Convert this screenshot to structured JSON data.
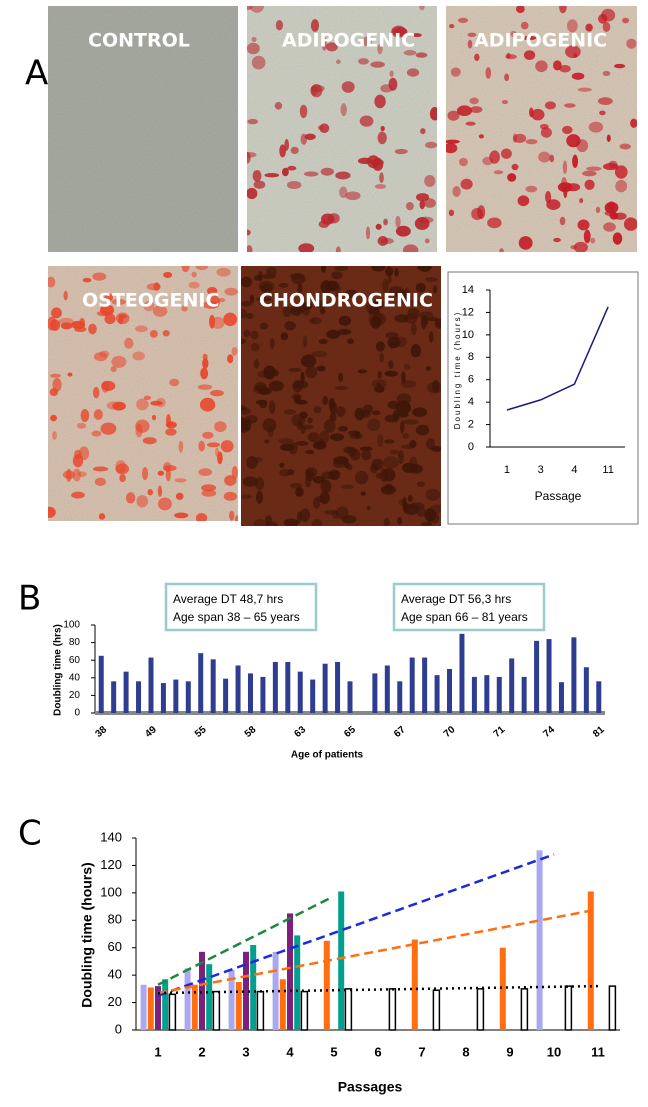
{
  "panel_labels": [
    "A",
    "B",
    "C"
  ],
  "image_labels": [
    "CONTROL",
    "ADIPOGENIC",
    "ADIPOGENIC",
    "OSTEOGENIC",
    "CHONDROGENIC"
  ],
  "chart_data": [
    {
      "type": "line",
      "ylabel": "Doubling time (hours)",
      "xlabel": "Passage",
      "categories": [
        "1",
        "3",
        "4",
        "11"
      ],
      "values": [
        3.3,
        4.2,
        5.6,
        12.5
      ],
      "color": "#1a1a7a",
      "ylim": [
        0,
        14
      ],
      "yticks": [
        0,
        2,
        4,
        6,
        8,
        10,
        12,
        14
      ],
      "grid": false
    },
    {
      "type": "bar",
      "ylabel": "Doubling time (hrs)",
      "xlabel": "Age of patients",
      "annotations": [
        "Average DT 48,7 hrs",
        "Age span 38   – 65 years",
        "Average DT 56,3 hrs",
        "Age span 66   – 81 years"
      ],
      "categories": [
        "38",
        null,
        null,
        null,
        "49",
        null,
        null,
        null,
        "55",
        null,
        null,
        null,
        "58",
        null,
        null,
        null,
        "63",
        null,
        null,
        null,
        "65",
        null,
        null,
        null,
        "67",
        null,
        null,
        null,
        "70",
        null,
        null,
        null,
        "71",
        null,
        null,
        null,
        "74",
        null,
        null,
        null,
        "81"
      ],
      "values": [
        65,
        36,
        47,
        36,
        63,
        34,
        38,
        36,
        68,
        61,
        39,
        54,
        45,
        41,
        58,
        58,
        47,
        38,
        56,
        58,
        36,
        null,
        45,
        54,
        36,
        63,
        63,
        43,
        50,
        90,
        41,
        43,
        41,
        62,
        41,
        82,
        84,
        35,
        86,
        52,
        36
      ],
      "color": "#2e3d8f",
      "ylim": [
        0,
        100
      ],
      "yticks": [
        0,
        20,
        40,
        60,
        80,
        100
      ],
      "grid": false
    },
    {
      "type": "bar",
      "ylabel": "Doubling time (hours)",
      "xlabel": "Passages",
      "categories": [
        "1",
        "2",
        "3",
        "4",
        "5",
        "6",
        "7",
        "8",
        "9",
        "10",
        "11"
      ],
      "series": [
        {
          "color": "#a9a9f0",
          "values": [
            33,
            45,
            44,
            57,
            null,
            null,
            null,
            null,
            null,
            131,
            null
          ]
        },
        {
          "color": "#ff6f12",
          "values": [
            31,
            33,
            35,
            37,
            65,
            null,
            66,
            null,
            60,
            null,
            101
          ]
        },
        {
          "color": "#7d1f7d",
          "values": [
            32,
            57,
            57,
            85,
            null,
            null,
            null,
            null,
            null,
            null,
            null
          ]
        },
        {
          "color": "#00a090",
          "values": [
            37,
            48,
            62,
            69,
            101,
            null,
            null,
            null,
            null,
            null,
            null
          ]
        },
        {
          "color": "#ffffff",
          "values": [
            26,
            28,
            28,
            28,
            30,
            30,
            29,
            30,
            30,
            32,
            32
          ]
        }
      ],
      "trendlines": [
        {
          "color": "#1a8a3a",
          "style": "dashed",
          "x": [
            1,
            4.9
          ],
          "values": [
            33,
            96
          ]
        },
        {
          "color": "#1a2ad8",
          "style": "dashed",
          "x": [
            1,
            10
          ],
          "values": [
            25,
            128
          ]
        },
        {
          "color": "#ff6f12",
          "style": "dashed",
          "x": [
            1,
            11
          ],
          "values": [
            27,
            88
          ]
        },
        {
          "color": "#000000",
          "style": "dotted",
          "x": [
            1,
            11
          ],
          "values": [
            27,
            32
          ]
        }
      ],
      "ylim": [
        0,
        140
      ],
      "yticks": [
        0,
        20,
        40,
        60,
        80,
        100,
        120,
        140
      ],
      "grid": false
    }
  ]
}
